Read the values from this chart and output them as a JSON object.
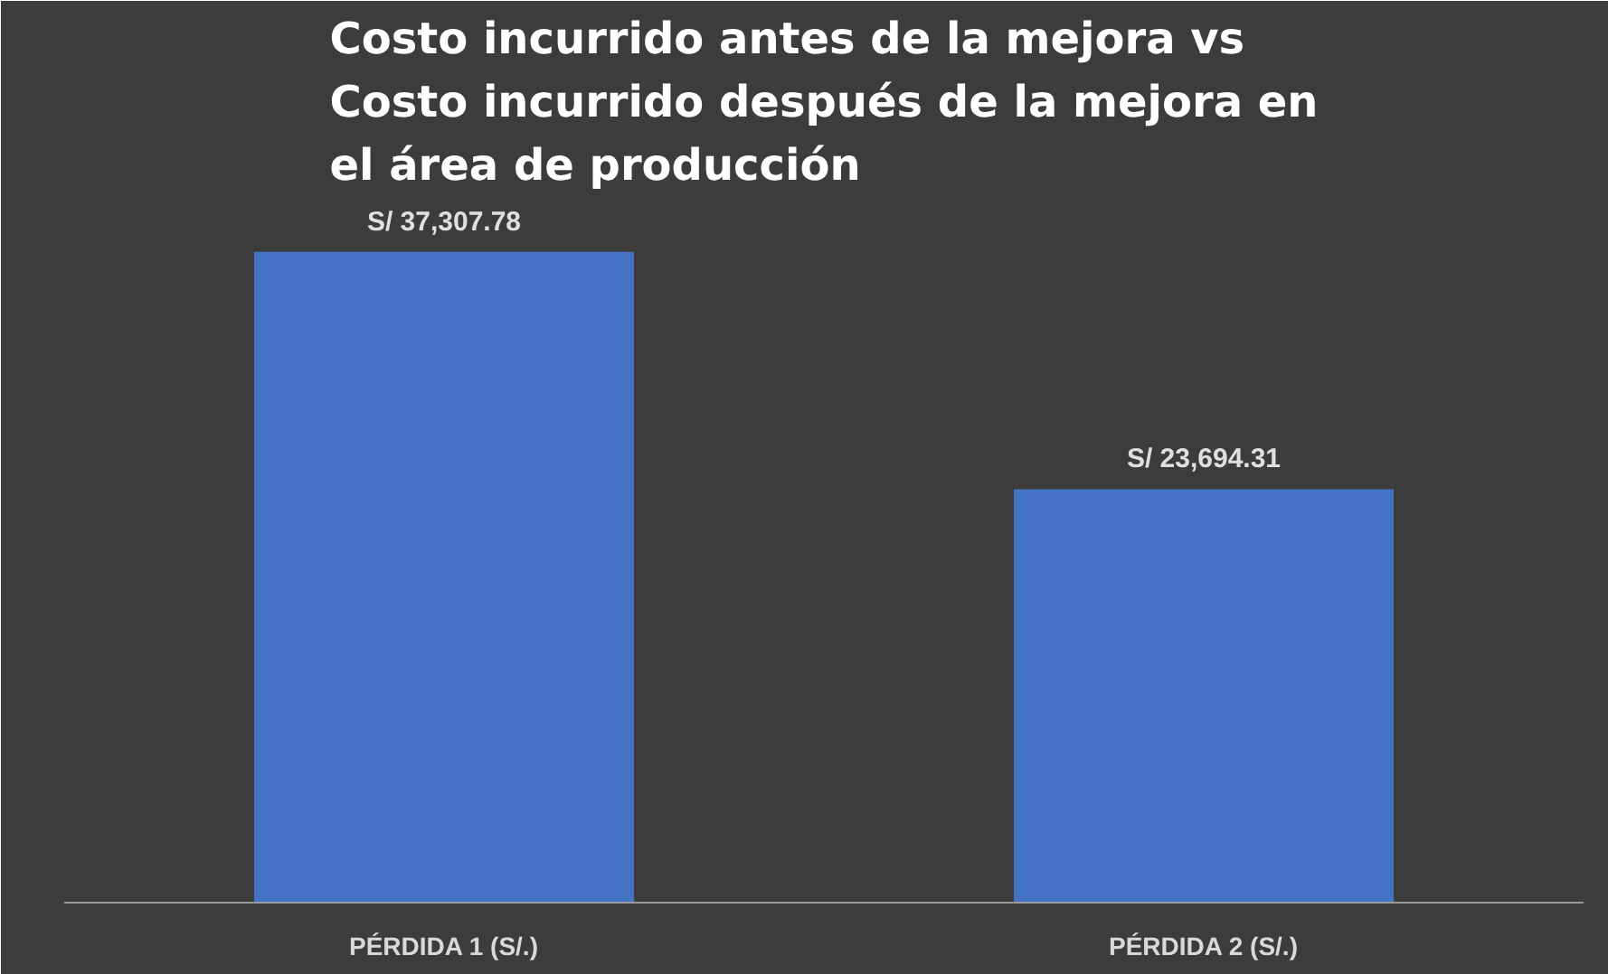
{
  "chart_data": {
    "type": "bar",
    "title": "Costo incurrido antes de la mejora vs Costo incurrido después de la mejora en el área de producción",
    "categories": [
      "PÉRDIDA 1 (S/.)",
      "PÉRDIDA 2 (S/.)"
    ],
    "values": [
      37307.78,
      23694.31
    ],
    "value_labels": [
      "S/ 37,307.78",
      "S/ 23,694.31"
    ],
    "color": "#4472c4",
    "grid": false
  }
}
